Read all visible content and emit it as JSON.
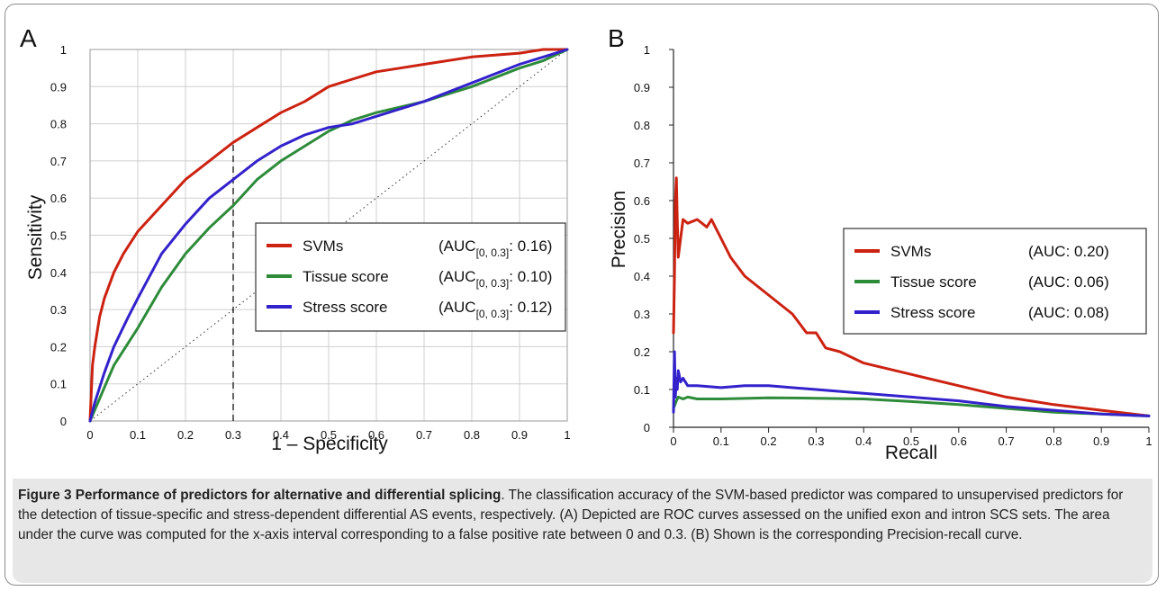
{
  "caption": {
    "label": "Figure 3",
    "title": "Performance of predictors for alternative and differential splicing",
    "body": ". The classification accuracy of the SVM-based predictor was compared to unsupervised predictors for the detection of tissue-specific and stress-dependent differential AS events, respectively. (A) Depicted are ROC curves assessed on the unified exon and intron SCS sets. The area under the curve was computed for the x-axis interval corresponding to a false positive rate between 0 and 0.3. (B) Shown is the corresponding Precision-recall curve."
  },
  "colors": {
    "svm": "#cc2211",
    "tissue": "#2e8b3a",
    "stress": "#3322cc",
    "grid": "#cfcfcf"
  },
  "chart_data": [
    {
      "panel_label": "A",
      "type": "line",
      "xlabel": "1 – Specificity",
      "ylabel": "Sensitivity",
      "xlim": [
        0,
        1
      ],
      "ylim": [
        0,
        1
      ],
      "xticks": [
        "0",
        "0.1",
        "0.2",
        "0.3",
        "0.4",
        "0.5",
        "0.6",
        "0.7",
        "0.8",
        "0.9",
        "1"
      ],
      "yticks": [
        "0",
        "0.1",
        "0.2",
        "0.3",
        "0.4",
        "0.5",
        "0.6",
        "0.7",
        "0.8",
        "0.9",
        "1"
      ],
      "grid": true,
      "legend_position": "middle-right",
      "diagonal_reference": true,
      "vertical_marker_x": 0.3,
      "series": [
        {
          "name": "SVMs",
          "auc_prefix": "(AUC",
          "auc_sub": "[0, 0.3]",
          "auc_value": ": 0.16)",
          "color_key": "svm",
          "x": [
            0,
            0.005,
            0.01,
            0.02,
            0.03,
            0.05,
            0.07,
            0.1,
            0.15,
            0.2,
            0.25,
            0.3,
            0.35,
            0.4,
            0.45,
            0.5,
            0.55,
            0.6,
            0.65,
            0.7,
            0.8,
            0.9,
            0.95,
            1.0
          ],
          "y": [
            0,
            0.15,
            0.2,
            0.28,
            0.33,
            0.4,
            0.45,
            0.51,
            0.58,
            0.65,
            0.7,
            0.75,
            0.79,
            0.83,
            0.86,
            0.9,
            0.92,
            0.94,
            0.95,
            0.96,
            0.98,
            0.99,
            1.0,
            1.0
          ]
        },
        {
          "name": "Tissue score",
          "auc_prefix": "(AUC",
          "auc_sub": "[0, 0.3]",
          "auc_value": ": 0.10)",
          "color_key": "tissue",
          "x": [
            0,
            0.01,
            0.03,
            0.05,
            0.08,
            0.1,
            0.15,
            0.2,
            0.25,
            0.3,
            0.35,
            0.4,
            0.45,
            0.5,
            0.55,
            0.6,
            0.7,
            0.8,
            0.9,
            0.95,
            1.0
          ],
          "y": [
            0,
            0.03,
            0.09,
            0.15,
            0.21,
            0.25,
            0.36,
            0.45,
            0.52,
            0.58,
            0.65,
            0.7,
            0.74,
            0.78,
            0.81,
            0.83,
            0.86,
            0.9,
            0.95,
            0.97,
            1.0
          ]
        },
        {
          "name": "Stress score",
          "auc_prefix": "(AUC",
          "auc_sub": "[0, 0.3]",
          "auc_value": ": 0.12)",
          "color_key": "stress",
          "x": [
            0,
            0.01,
            0.03,
            0.05,
            0.08,
            0.1,
            0.15,
            0.2,
            0.25,
            0.3,
            0.35,
            0.4,
            0.45,
            0.5,
            0.55,
            0.6,
            0.7,
            0.8,
            0.9,
            0.95,
            1.0
          ],
          "y": [
            0,
            0.05,
            0.13,
            0.2,
            0.28,
            0.33,
            0.45,
            0.53,
            0.6,
            0.65,
            0.7,
            0.74,
            0.77,
            0.79,
            0.8,
            0.82,
            0.86,
            0.91,
            0.96,
            0.98,
            1.0
          ]
        }
      ]
    },
    {
      "panel_label": "B",
      "type": "line",
      "xlabel": "Recall",
      "ylabel": "Precision",
      "xlim": [
        0,
        1
      ],
      "ylim": [
        0,
        1
      ],
      "xticks": [
        "0",
        "0.1",
        "0.2",
        "0.3",
        "0.4",
        "0.5",
        "0.6",
        "0.7",
        "0.8",
        "0.9",
        "1"
      ],
      "yticks": [
        "0",
        "0.1",
        "0.2",
        "0.3",
        "0.4",
        "0.5",
        "0.6",
        "0.7",
        "0.8",
        "0.9",
        "1"
      ],
      "grid": false,
      "legend_position": "middle-right",
      "series": [
        {
          "name": "SVMs",
          "auc_prefix": "(AUC",
          "auc_sub": "",
          "auc_value": ": 0.20)",
          "color_key": "svm",
          "x": [
            0,
            0.002,
            0.004,
            0.006,
            0.008,
            0.01,
            0.015,
            0.02,
            0.03,
            0.05,
            0.07,
            0.08,
            0.1,
            0.12,
            0.15,
            0.2,
            0.25,
            0.28,
            0.3,
            0.32,
            0.35,
            0.4,
            0.5,
            0.6,
            0.7,
            0.8,
            0.9,
            1.0
          ],
          "y": [
            0.25,
            0.4,
            0.6,
            0.66,
            0.55,
            0.45,
            0.5,
            0.55,
            0.54,
            0.55,
            0.53,
            0.55,
            0.5,
            0.45,
            0.4,
            0.35,
            0.3,
            0.25,
            0.25,
            0.21,
            0.2,
            0.17,
            0.14,
            0.11,
            0.08,
            0.06,
            0.045,
            0.03
          ]
        },
        {
          "name": "Tissue score",
          "auc_prefix": "(AUC",
          "auc_sub": "",
          "auc_value": ": 0.06)",
          "color_key": "tissue",
          "x": [
            0,
            0.003,
            0.006,
            0.01,
            0.02,
            0.03,
            0.05,
            0.1,
            0.2,
            0.3,
            0.4,
            0.5,
            0.6,
            0.7,
            0.8,
            0.9,
            1.0
          ],
          "y": [
            0.05,
            0.06,
            0.07,
            0.08,
            0.075,
            0.08,
            0.075,
            0.075,
            0.078,
            0.077,
            0.075,
            0.068,
            0.06,
            0.05,
            0.04,
            0.035,
            0.03
          ]
        },
        {
          "name": "Stress score",
          "auc_prefix": "(AUC",
          "auc_sub": "",
          "auc_value": ": 0.08)",
          "color_key": "stress",
          "x": [
            0,
            0.002,
            0.004,
            0.006,
            0.008,
            0.01,
            0.015,
            0.02,
            0.03,
            0.05,
            0.1,
            0.15,
            0.2,
            0.3,
            0.4,
            0.5,
            0.6,
            0.7,
            0.8,
            0.9,
            1.0
          ],
          "y": [
            0.04,
            0.2,
            0.08,
            0.13,
            0.1,
            0.15,
            0.12,
            0.13,
            0.11,
            0.11,
            0.105,
            0.11,
            0.11,
            0.1,
            0.09,
            0.08,
            0.07,
            0.055,
            0.045,
            0.035,
            0.03
          ]
        }
      ]
    }
  ]
}
